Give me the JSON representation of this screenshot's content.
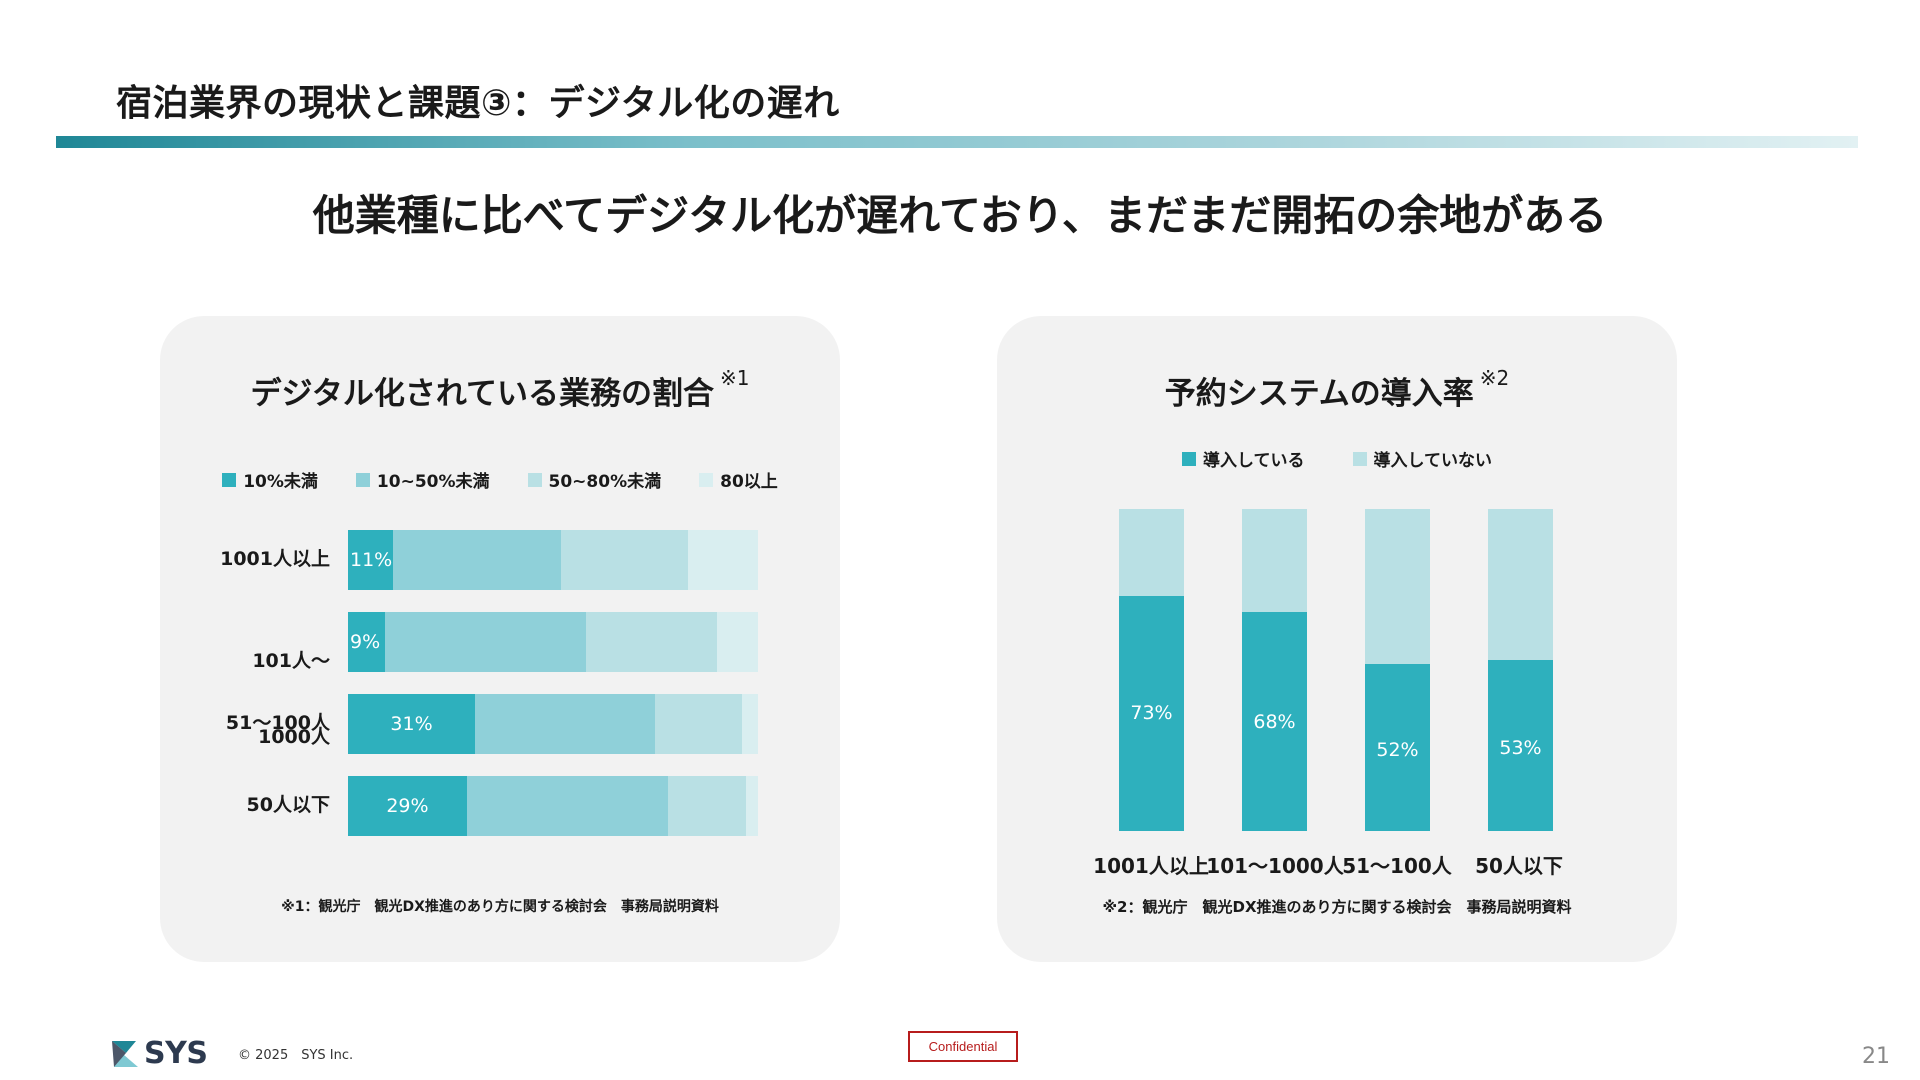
{
  "slide": {
    "title": "宿泊業界の現状と課題③：デジタル化の遅れ",
    "headline": "他業種に比べてデジタル化が遅れており、まだまだ開拓の余地がある",
    "brand": "SYS",
    "copyright": "© 2025　SYS Inc.",
    "confidential": "Confidential",
    "page_number": "21"
  },
  "colors": {
    "teal_dark": "#2eb0bd",
    "teal_mid": "#8fd0d9",
    "teal_light": "#b9e0e4",
    "teal_pale": "#d9eef0",
    "accent": "#1f8796"
  },
  "chart_data": [
    {
      "type": "bar",
      "orientation": "horizontal",
      "stacked": true,
      "title": "デジタル化されている業務の割合",
      "note_mark": "※1",
      "categories": [
        "1001人以上",
        "101人〜1000人",
        "51〜100人",
        "50人以下"
      ],
      "series": [
        {
          "name": "10%未満",
          "color": "#2eb0bd",
          "values": [
            11,
            9,
            31,
            29
          ],
          "labels": [
            "11%",
            "9%",
            "31%",
            "29%"
          ]
        },
        {
          "name": "10~50%未満",
          "color": "#8fd0d9",
          "values": [
            41,
            49,
            44,
            49
          ]
        },
        {
          "name": "50~80%未満",
          "color": "#b9e0e4",
          "values": [
            31,
            32,
            21,
            19
          ]
        },
        {
          "name": "80以上",
          "color": "#d9eef0",
          "values": [
            17,
            10,
            4,
            3
          ]
        }
      ],
      "xlim": [
        0,
        100
      ],
      "legend": "top",
      "source": "※1：観光庁　観光DX推進のあり方に関する検討会　事務局説明資料"
    },
    {
      "type": "bar",
      "orientation": "vertical",
      "stacked": true,
      "title": "予約システムの導入率",
      "note_mark": "※2",
      "categories": [
        "1001人以上",
        "101〜1000人",
        "51〜100人",
        "50人以下"
      ],
      "series": [
        {
          "name": "導入している",
          "color": "#2eb0bd",
          "values": [
            73,
            68,
            52,
            53
          ],
          "labels": [
            "73%",
            "68%",
            "52%",
            "53%"
          ]
        },
        {
          "name": "導入していない",
          "color": "#b9e0e4",
          "values": [
            27,
            32,
            48,
            47
          ]
        }
      ],
      "ylim": [
        0,
        100
      ],
      "legend": "top",
      "source": "※2：観光庁　観光DX推進のあり方に関する検討会　事務局説明資料"
    }
  ]
}
